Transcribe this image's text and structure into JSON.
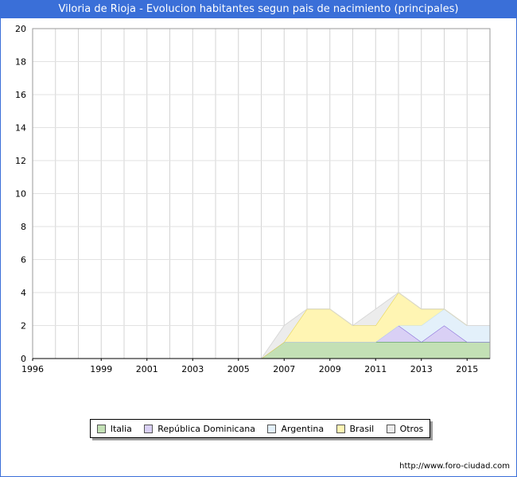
{
  "header": {
    "title": "Viloria de Rioja - Evolucion habitantes segun pais de nacimiento (principales)"
  },
  "footer": {
    "url": "http://www.foro-ciudad.com"
  },
  "colors": {
    "title_bg": "#3a6fd8",
    "Italia": "#c3e0b5",
    "Rep_Dominicana": "#d9d0f5",
    "Argentina": "#e3f0fa",
    "Brasil": "#fff5b3",
    "Otros": "#ececec"
  },
  "chart_data": {
    "type": "area",
    "stacked": true,
    "x": [
      1996,
      1997,
      1998,
      1999,
      2000,
      2001,
      2002,
      2003,
      2004,
      2005,
      2006,
      2007,
      2008,
      2009,
      2010,
      2011,
      2012,
      2013,
      2014,
      2015,
      2016
    ],
    "x_ticks": [
      "1996",
      "1999",
      "2001",
      "2003",
      "2005",
      "2007",
      "2009",
      "2011",
      "2013",
      "2015"
    ],
    "y_ticks": [
      "0",
      "2",
      "4",
      "6",
      "8",
      "10",
      "12",
      "14",
      "16",
      "18",
      "20"
    ],
    "ylim": [
      0,
      20
    ],
    "grid": true,
    "legend_position": "bottom",
    "series": [
      {
        "name": "Italia",
        "fill": "#c3e0b5",
        "stroke": "#2e8b2e",
        "values": [
          0,
          0,
          0,
          0,
          0,
          0,
          0,
          0,
          0,
          0,
          0,
          1,
          1,
          1,
          1,
          1,
          1,
          1,
          1,
          1,
          1
        ]
      },
      {
        "name": "República Dominicana",
        "fill": "#d9d0f5",
        "stroke": "#7b5cd6",
        "values": [
          0,
          0,
          0,
          0,
          0,
          0,
          0,
          0,
          0,
          0,
          0,
          0,
          0,
          0,
          0,
          0,
          1,
          0,
          1,
          0,
          0
        ]
      },
      {
        "name": "Argentina",
        "fill": "#e3f0fa",
        "stroke": "#bcdcf0",
        "values": [
          0,
          0,
          0,
          0,
          0,
          0,
          0,
          0,
          0,
          0,
          0,
          0,
          0,
          0,
          0,
          0,
          0,
          1,
          1,
          1,
          1
        ]
      },
      {
        "name": "Brasil",
        "fill": "#fff5b3",
        "stroke": "#e6d23c",
        "values": [
          0,
          0,
          0,
          0,
          0,
          0,
          0,
          0,
          0,
          0,
          0,
          0,
          2,
          2,
          1,
          1,
          2,
          1,
          0,
          0,
          0
        ]
      },
      {
        "name": "Otros",
        "fill": "#ececec",
        "stroke": "#d8d8d8",
        "values": [
          0,
          0,
          0,
          0,
          0,
          0,
          0,
          0,
          0,
          0,
          0,
          1,
          0,
          0,
          0,
          1,
          0,
          0,
          0,
          0,
          0
        ]
      }
    ]
  },
  "legend": [
    {
      "label": "Italia",
      "color": "#c3e0b5"
    },
    {
      "label": "República Dominicana",
      "color": "#d9d0f5"
    },
    {
      "label": "Argentina",
      "color": "#e3f0fa"
    },
    {
      "label": "Brasil",
      "color": "#fff5b3"
    },
    {
      "label": "Otros",
      "color": "#ececec"
    }
  ]
}
